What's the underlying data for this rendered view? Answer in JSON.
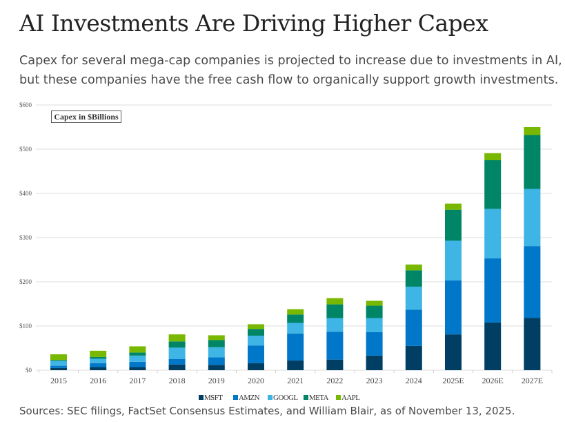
{
  "title": "AI Investments Are Driving Higher Capex",
  "subtitle": "Capex for several mega-cap companies is projected to increase due to investments in AI, but these companies have the free cash flow to organically support growth investments.",
  "sources": "Sources: SEC filings, FactSet Consensus Estimates, and William Blair, as of November 13, 2025.",
  "chart_data": {
    "type": "bar",
    "stacked": true,
    "annotation": "Capex in $Billions",
    "categories": [
      "2015",
      "2016",
      "2017",
      "2018",
      "2019",
      "2020",
      "2021",
      "2022",
      "2023",
      "2024",
      "2025E",
      "2026E",
      "2027E"
    ],
    "series": [
      {
        "name": "MSFT",
        "color": "#003f63",
        "values": [
          5,
          7,
          7,
          13,
          12,
          16,
          22,
          24,
          33,
          55,
          81,
          108,
          118
        ]
      },
      {
        "name": "AMZN",
        "color": "#0077c8",
        "values": [
          5,
          9,
          12,
          12,
          17,
          40,
          61,
          63,
          53,
          82,
          122,
          145,
          163
        ]
      },
      {
        "name": "GOOGL",
        "color": "#3eb5e5",
        "values": [
          11,
          10,
          14,
          26,
          23,
          22,
          24,
          31,
          32,
          52,
          90,
          112,
          129
        ]
      },
      {
        "name": "META",
        "color": "#008566",
        "values": [
          2,
          4,
          7,
          14,
          16,
          15,
          19,
          31,
          28,
          37,
          70,
          110,
          122
        ]
      },
      {
        "name": "AAPL",
        "color": "#78b800",
        "values": [
          13,
          14,
          14,
          16,
          11,
          11,
          12,
          14,
          11,
          13,
          14,
          16,
          18
        ]
      }
    ],
    "ylim": [
      0,
      600
    ],
    "yticks": [
      "$0",
      "$100",
      "$200",
      "$300",
      "$400",
      "$500",
      "$600"
    ],
    "grid": true,
    "legend": "bottom"
  }
}
